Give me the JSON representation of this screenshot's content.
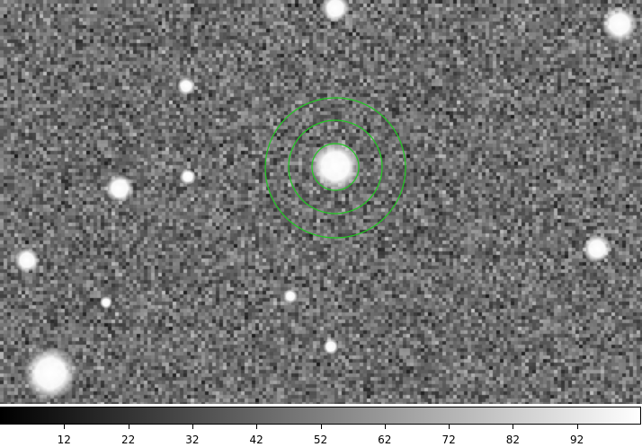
{
  "image": {
    "description_kind": "astronomical field",
    "background_gray": "#6e6e6e",
    "region_color": "#22c922"
  },
  "colorbar": {
    "min_value": 2,
    "max_value": 102,
    "tick_labels": [
      "12",
      "22",
      "32",
      "42",
      "52",
      "62",
      "72",
      "82",
      "92"
    ],
    "tick_values": [
      12,
      22,
      32,
      42,
      52,
      62,
      72,
      82,
      92
    ]
  }
}
